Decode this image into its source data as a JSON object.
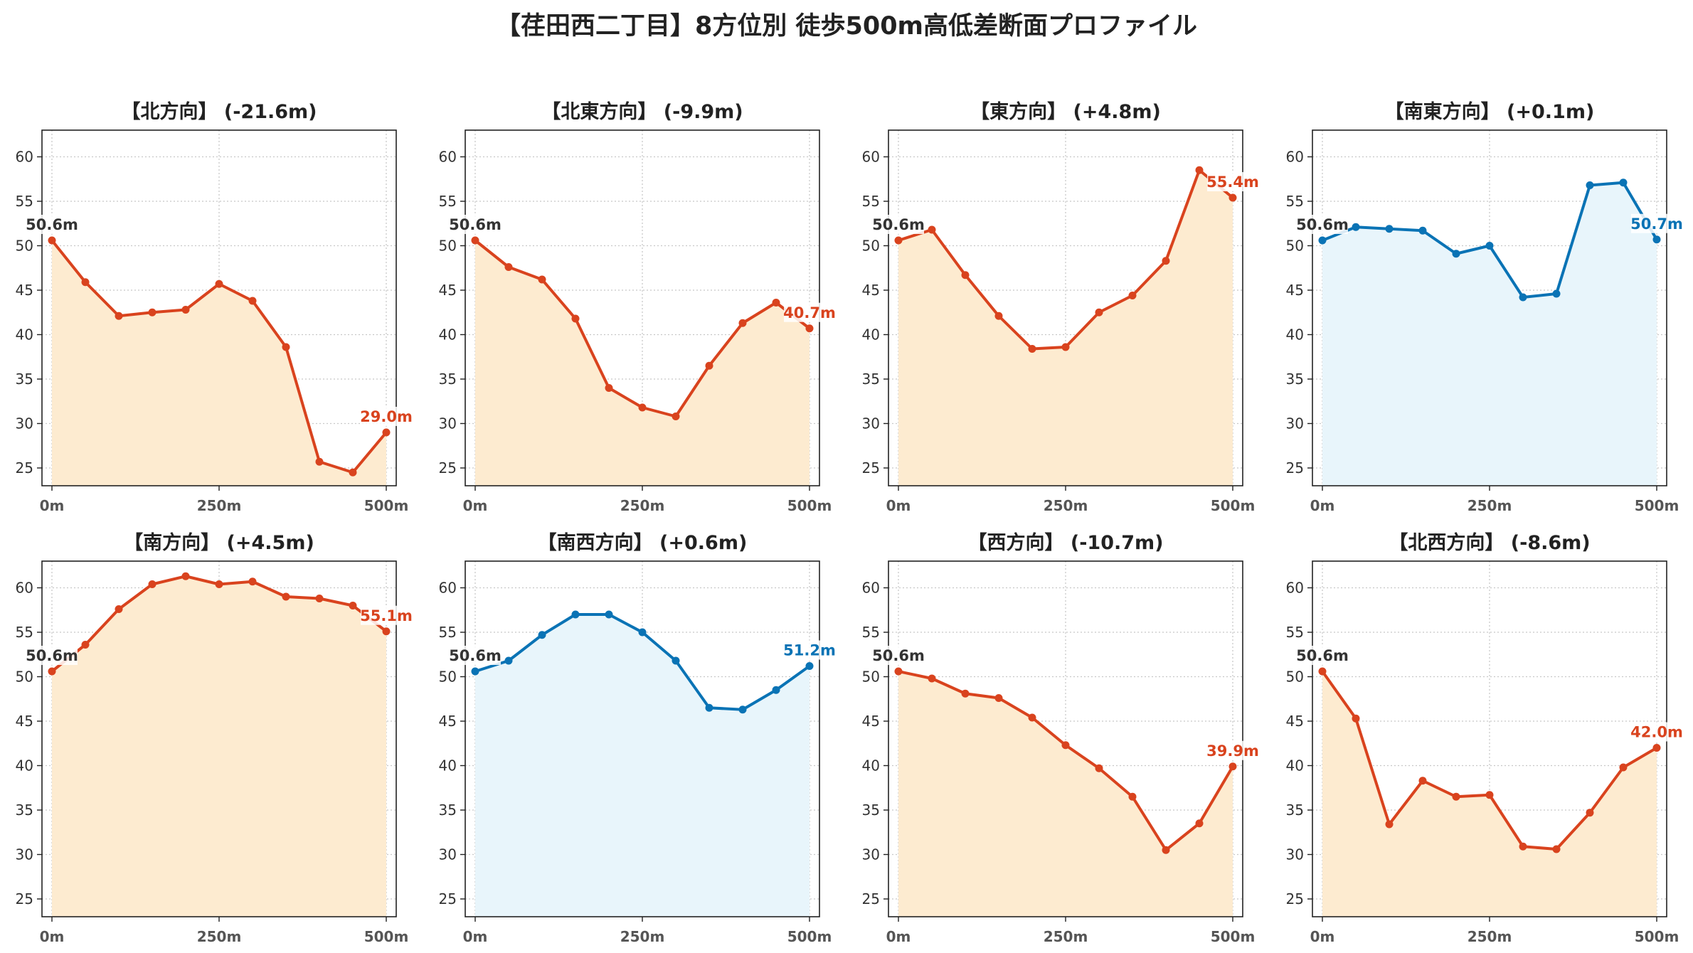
{
  "title": "【荏田西二丁目】8方位別 徒歩500m高低差断面プロファイル",
  "colors": {
    "down": "#d9431e",
    "up": "#0a73b5",
    "fill_down": "#fdebd0",
    "fill_up": "#e8f5fb"
  },
  "chart_data": [
    {
      "type": "area",
      "title": "【北方向】 (-21.6m)",
      "color": "down",
      "x": [
        0,
        50,
        100,
        150,
        200,
        250,
        300,
        350,
        400,
        450,
        500
      ],
      "y": [
        50.6,
        45.9,
        42.1,
        42.5,
        42.8,
        45.7,
        43.8,
        38.6,
        25.7,
        24.5,
        29.0
      ],
      "start_label": "50.6m",
      "end_label": "29.0m",
      "ylim": [
        23,
        63
      ],
      "yticks": [
        25,
        30,
        35,
        40,
        45,
        50,
        55,
        60
      ],
      "xticks": [
        0,
        250,
        500
      ],
      "xtick_labels": [
        "0m",
        "250m",
        "500m"
      ],
      "grid": true
    },
    {
      "type": "area",
      "title": "【北東方向】 (-9.9m)",
      "color": "down",
      "x": [
        0,
        50,
        100,
        150,
        200,
        250,
        300,
        350,
        400,
        450,
        500
      ],
      "y": [
        50.6,
        47.6,
        46.2,
        41.8,
        34.0,
        31.8,
        30.8,
        36.5,
        41.3,
        43.6,
        40.7
      ],
      "start_label": "50.6m",
      "end_label": "40.7m",
      "ylim": [
        23,
        63
      ],
      "yticks": [
        25,
        30,
        35,
        40,
        45,
        50,
        55,
        60
      ],
      "xticks": [
        0,
        250,
        500
      ],
      "xtick_labels": [
        "0m",
        "250m",
        "500m"
      ],
      "grid": true
    },
    {
      "type": "area",
      "title": "【東方向】 (+4.8m)",
      "color": "down",
      "x": [
        0,
        50,
        100,
        150,
        200,
        250,
        300,
        350,
        400,
        450,
        500
      ],
      "y": [
        50.6,
        51.8,
        46.7,
        42.1,
        38.4,
        38.6,
        42.5,
        44.4,
        48.3,
        58.5,
        55.4
      ],
      "start_label": "50.6m",
      "end_label": "55.4m",
      "ylim": [
        23,
        63
      ],
      "yticks": [
        25,
        30,
        35,
        40,
        45,
        50,
        55,
        60
      ],
      "xticks": [
        0,
        250,
        500
      ],
      "xtick_labels": [
        "0m",
        "250m",
        "500m"
      ],
      "grid": true
    },
    {
      "type": "area",
      "title": "【南東方向】 (+0.1m)",
      "color": "up",
      "x": [
        0,
        50,
        100,
        150,
        200,
        250,
        300,
        350,
        400,
        450,
        500
      ],
      "y": [
        50.6,
        52.1,
        51.9,
        51.7,
        49.1,
        50.0,
        44.2,
        44.6,
        56.8,
        57.1,
        50.7
      ],
      "start_label": "50.6m",
      "end_label": "50.7m",
      "ylim": [
        23,
        63
      ],
      "yticks": [
        25,
        30,
        35,
        40,
        45,
        50,
        55,
        60
      ],
      "xticks": [
        0,
        250,
        500
      ],
      "xtick_labels": [
        "0m",
        "250m",
        "500m"
      ],
      "grid": true
    },
    {
      "type": "area",
      "title": "【南方向】 (+4.5m)",
      "color": "down",
      "x": [
        0,
        50,
        100,
        150,
        200,
        250,
        300,
        350,
        400,
        450,
        500
      ],
      "y": [
        50.6,
        53.6,
        57.6,
        60.4,
        61.3,
        60.4,
        60.7,
        59.0,
        58.8,
        58.0,
        55.1
      ],
      "start_label": "50.6m",
      "end_label": "55.1m",
      "ylim": [
        23,
        63
      ],
      "yticks": [
        25,
        30,
        35,
        40,
        45,
        50,
        55,
        60
      ],
      "xticks": [
        0,
        250,
        500
      ],
      "xtick_labels": [
        "0m",
        "250m",
        "500m"
      ],
      "grid": true
    },
    {
      "type": "area",
      "title": "【南西方向】 (+0.6m)",
      "color": "up",
      "x": [
        0,
        50,
        100,
        150,
        200,
        250,
        300,
        350,
        400,
        450,
        500
      ],
      "y": [
        50.6,
        51.8,
        54.7,
        57.0,
        57.0,
        55.0,
        51.8,
        46.5,
        46.3,
        48.5,
        51.2
      ],
      "start_label": "50.6m",
      "end_label": "51.2m",
      "ylim": [
        23,
        63
      ],
      "yticks": [
        25,
        30,
        35,
        40,
        45,
        50,
        55,
        60
      ],
      "xticks": [
        0,
        250,
        500
      ],
      "xtick_labels": [
        "0m",
        "250m",
        "500m"
      ],
      "grid": true
    },
    {
      "type": "area",
      "title": "【西方向】 (-10.7m)",
      "color": "down",
      "x": [
        0,
        50,
        100,
        150,
        200,
        250,
        300,
        350,
        400,
        450,
        500
      ],
      "y": [
        50.6,
        49.8,
        48.1,
        47.6,
        45.4,
        42.3,
        39.7,
        36.5,
        30.5,
        33.5,
        39.9
      ],
      "start_label": "50.6m",
      "end_label": "39.9m",
      "ylim": [
        23,
        63
      ],
      "yticks": [
        25,
        30,
        35,
        40,
        45,
        50,
        55,
        60
      ],
      "xticks": [
        0,
        250,
        500
      ],
      "xtick_labels": [
        "0m",
        "250m",
        "500m"
      ],
      "grid": true
    },
    {
      "type": "area",
      "title": "【北西方向】 (-8.6m)",
      "color": "down",
      "x": [
        0,
        50,
        100,
        150,
        200,
        250,
        300,
        350,
        400,
        450,
        500
      ],
      "y": [
        50.6,
        45.3,
        33.4,
        38.3,
        36.5,
        36.7,
        30.9,
        30.6,
        34.7,
        39.8,
        42.0
      ],
      "start_label": "50.6m",
      "end_label": "42.0m",
      "ylim": [
        23,
        63
      ],
      "yticks": [
        25,
        30,
        35,
        40,
        45,
        50,
        55,
        60
      ],
      "xticks": [
        0,
        250,
        500
      ],
      "xtick_labels": [
        "0m",
        "250m",
        "500m"
      ],
      "grid": true
    }
  ]
}
